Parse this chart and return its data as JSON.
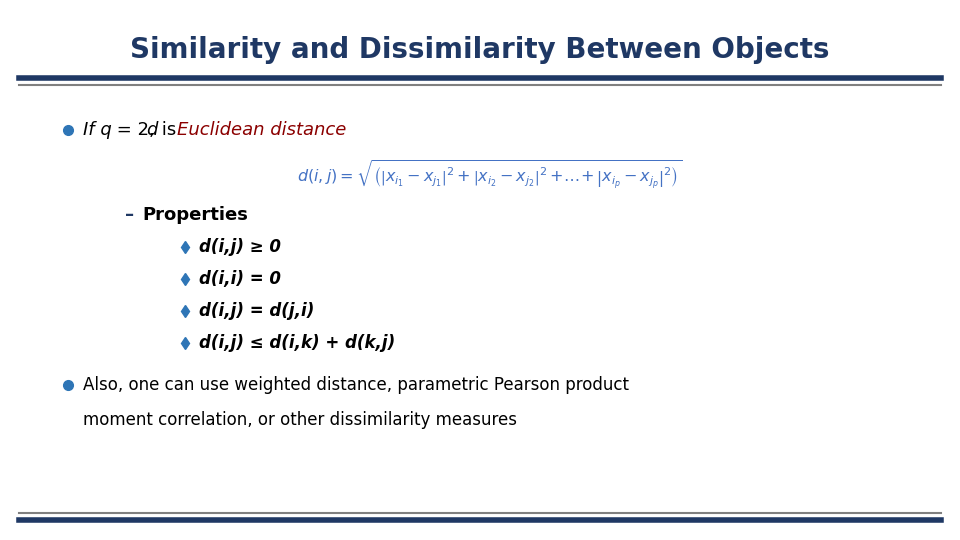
{
  "title": "Similarity and Dissimilarity Between Objects",
  "title_color": "#1F3864",
  "title_fontsize": 20,
  "bg_color": "#FFFFFF",
  "line_color": "#1F3864",
  "gray_color": "#808080",
  "bullet_color": "#2E75B6",
  "dash_color": "#1F3864",
  "diamond_color": "#2E75B6",
  "text_color": "#000000",
  "red_color": "#8B0000",
  "formula_color": "#4472C4",
  "dash_label": "Properties",
  "prop1": "d(i,j) ≥ 0",
  "prop2": "d(i,i) = 0",
  "prop3": "d(i,j) = d(j,i)",
  "prop4": "d(i,j) ≤ d(i,k) + d(k,j)",
  "bullet2_line1": "Also, one can use weighted distance, parametric Pearson product",
  "bullet2_line2": "moment correlation, or other dissimilarity measures"
}
